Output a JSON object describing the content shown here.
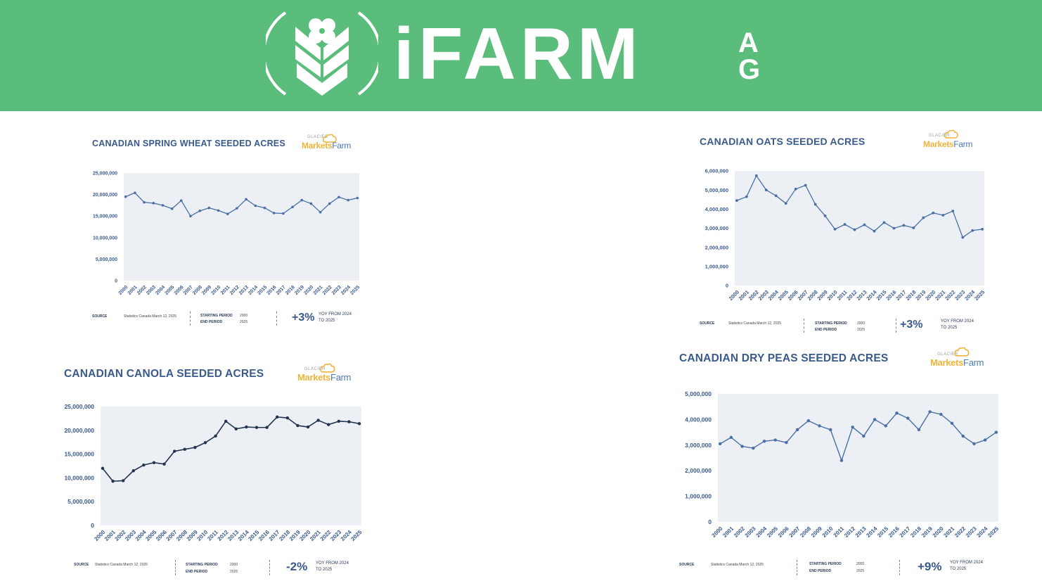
{
  "banner": {
    "brand_name": "iFARM",
    "brand_suffix_top": "A",
    "brand_suffix_bottom": "G",
    "color": "#5bbd7b"
  },
  "brand_badge": {
    "small_text": "GLACIER",
    "part1": "Markets",
    "part2": "Farm"
  },
  "footer_labels": {
    "source_label": "SOURCE",
    "start_label": "STARTING PERIOD",
    "end_label": "END PERIOD",
    "yoy_line1": "YOY FROM 2024",
    "yoy_line2": "TO 2025"
  },
  "chart_data": [
    {
      "type": "line",
      "title": "CANADIAN SPRING WHEAT SEEDED ACRES",
      "x": [
        "2000",
        "2001",
        "2002",
        "2003",
        "2004",
        "2005",
        "2006",
        "2007",
        "2008",
        "2009",
        "2010",
        "2011",
        "2012",
        "2013",
        "2014",
        "2015",
        "2016",
        "2017",
        "2018",
        "2019",
        "2020",
        "2021",
        "2022",
        "2023",
        "2024",
        "2025"
      ],
      "values": [
        19500000,
        20400000,
        18200000,
        18000000,
        17500000,
        16700000,
        18600000,
        15000000,
        16200000,
        16900000,
        16300000,
        15500000,
        16800000,
        18900000,
        17400000,
        16900000,
        15700000,
        15600000,
        17100000,
        18700000,
        17900000,
        15900000,
        17900000,
        19400000,
        18700000,
        19200000
      ],
      "ylim": [
        0,
        25000000
      ],
      "yticks": [
        0,
        5000000,
        10000000,
        15000000,
        20000000,
        25000000
      ],
      "ytick_labels": [
        "0",
        "5,000,000",
        "10,000,000",
        "15,000,000",
        "20,000,000",
        "25,000,000"
      ],
      "line_color": "#4a6fa5",
      "footer": {
        "source": "Statistics Canada March 12, 2025",
        "start": "2000",
        "end": "2025",
        "change": "+3%"
      }
    },
    {
      "type": "line",
      "title": "CANADIAN OATS SEEDED ACRES",
      "x": [
        "2000",
        "2001",
        "2002",
        "2003",
        "2004",
        "2005",
        "2006",
        "2007",
        "2008",
        "2009",
        "2010",
        "2011",
        "2012",
        "2013",
        "2014",
        "2015",
        "2016",
        "2017",
        "2018",
        "2019",
        "2020",
        "2021",
        "2022",
        "2023",
        "2024",
        "2025"
      ],
      "values": [
        4450000,
        4650000,
        5750000,
        5000000,
        4700000,
        4300000,
        5050000,
        5250000,
        4250000,
        3650000,
        2950000,
        3200000,
        2920000,
        3180000,
        2850000,
        3300000,
        3000000,
        3150000,
        3020000,
        3550000,
        3800000,
        3680000,
        3900000,
        2520000,
        2880000,
        2950000
      ],
      "ylim": [
        0,
        6000000
      ],
      "yticks": [
        0,
        1000000,
        2000000,
        3000000,
        4000000,
        5000000,
        6000000
      ],
      "ytick_labels": [
        "0",
        "1,000,000",
        "2,000,000",
        "3,000,000",
        "4,000,000",
        "5,000,000",
        "6,000,000"
      ],
      "line_color": "#4a6fa5",
      "footer": {
        "source": "Statistics Canada March 12, 2025",
        "start": "2000",
        "end": "2025",
        "change": "+3%"
      }
    },
    {
      "type": "line",
      "title": "CANADIAN CANOLA SEEDED ACRES",
      "x": [
        "2000",
        "2001",
        "2002",
        "2003",
        "2004",
        "2005",
        "2006",
        "2007",
        "2008",
        "2009",
        "2010",
        "2011",
        "2012",
        "2013",
        "2014",
        "2015",
        "2016",
        "2017",
        "2018",
        "2019",
        "2020",
        "2021",
        "2022",
        "2023",
        "2024",
        "2025"
      ],
      "values": [
        12000000,
        9300000,
        9400000,
        11500000,
        12700000,
        13200000,
        12900000,
        15600000,
        16000000,
        16400000,
        17400000,
        18800000,
        21900000,
        20300000,
        20700000,
        20600000,
        20600000,
        22800000,
        22600000,
        21000000,
        20700000,
        22100000,
        21200000,
        21900000,
        21800000,
        21400000
      ],
      "ylim": [
        0,
        25000000
      ],
      "yticks": [
        0,
        5000000,
        10000000,
        15000000,
        20000000,
        25000000
      ],
      "ytick_labels": [
        "0",
        "5,000,000",
        "10,000,000",
        "15,000,000",
        "20,000,000",
        "25,000,000"
      ],
      "line_color": "#24344f",
      "footer": {
        "source": "Statistics Canada March 12, 2025",
        "start": "2000",
        "end": "2025",
        "change": "-2%"
      }
    },
    {
      "type": "line",
      "title": "CANADIAN DRY PEAS SEEDED ACRES",
      "x": [
        "2000",
        "2001",
        "2002",
        "2003",
        "2004",
        "2005",
        "2006",
        "2007",
        "2008",
        "2009",
        "2010",
        "2011",
        "2012",
        "2013",
        "2014",
        "2015",
        "2016",
        "2017",
        "2018",
        "2019",
        "2020",
        "2021",
        "2022",
        "2023",
        "2024",
        "2025"
      ],
      "values": [
        3050000,
        3300000,
        2950000,
        2880000,
        3150000,
        3200000,
        3100000,
        3600000,
        3950000,
        3750000,
        3600000,
        2400000,
        3700000,
        3350000,
        4000000,
        3750000,
        4250000,
        4050000,
        3600000,
        4300000,
        4200000,
        3850000,
        3350000,
        3050000,
        3200000,
        3500000
      ],
      "ylim": [
        0,
        5000000
      ],
      "yticks": [
        0,
        1000000,
        2000000,
        3000000,
        4000000,
        5000000
      ],
      "ytick_labels": [
        "0",
        "1,000,000",
        "2,000,000",
        "3,000,000",
        "4,000,000",
        "5,000,000"
      ],
      "line_color": "#4a6fa5",
      "footer": {
        "source": "Statistics Canada March 12, 2025",
        "start": "2000",
        "end": "2025",
        "change": "+9%"
      }
    }
  ]
}
